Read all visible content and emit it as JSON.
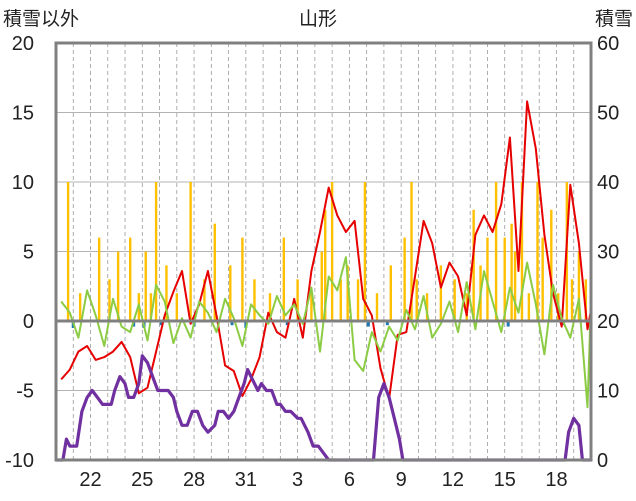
{
  "chart_data": {
    "type": "line",
    "title": "山形",
    "ylabel_left": "積雪以外",
    "ylabel_right": "積雪",
    "ylim_left": [
      -10,
      20
    ],
    "ylim_right": [
      0,
      60
    ],
    "yticks_left": [
      "20",
      "15",
      "10",
      "5",
      "0",
      "-5",
      "-10"
    ],
    "yticks_right": [
      "60",
      "50",
      "40",
      "30",
      "20",
      "10",
      "0"
    ],
    "xlim": [
      20,
      51
    ],
    "x_tick_positions": [
      22,
      25,
      28,
      31,
      34,
      37,
      40,
      43,
      46,
      49
    ],
    "xtick_labels": [
      "22",
      "25",
      "28",
      "31",
      "3",
      "6",
      "9",
      "12",
      "15",
      "18"
    ],
    "grid": true,
    "colors": {
      "temp_max": "#e60000",
      "temp_min": "#8ccc44",
      "precip": "#ffc000",
      "sunshine": "#1f77b4",
      "snow": "#7030a0",
      "frame": "#808080",
      "grid": "#9a9a9a"
    },
    "series": [
      {
        "name": "temp_max",
        "axis": "left",
        "color": "#e60000",
        "points": [
          [
            20.3,
            -4.2
          ],
          [
            20.8,
            -3.5
          ],
          [
            21.3,
            -2.2
          ],
          [
            21.8,
            -1.8
          ],
          [
            22.3,
            -2.8
          ],
          [
            22.8,
            -2.6
          ],
          [
            23.3,
            -2.2
          ],
          [
            23.8,
            -1.5
          ],
          [
            24.3,
            -2.6
          ],
          [
            24.8,
            -5.2
          ],
          [
            25.3,
            -4.8
          ],
          [
            25.8,
            -2.2
          ],
          [
            26.3,
            0.4
          ],
          [
            26.8,
            2.1
          ],
          [
            27.3,
            3.6
          ],
          [
            27.8,
            -0.2
          ],
          [
            28.3,
            1.2
          ],
          [
            28.8,
            3.6
          ],
          [
            29.3,
            0.4
          ],
          [
            29.8,
            -3.2
          ],
          [
            30.3,
            -3.6
          ],
          [
            30.8,
            -5.4
          ],
          [
            31.3,
            -4.2
          ],
          [
            31.8,
            -2.6
          ],
          [
            32.3,
            0.6
          ],
          [
            32.8,
            -0.8
          ],
          [
            33.3,
            -1.2
          ],
          [
            33.8,
            1.6
          ],
          [
            34.3,
            -1.2
          ],
          [
            34.8,
            3.6
          ],
          [
            35.3,
            6.4
          ],
          [
            35.8,
            9.6
          ],
          [
            36.3,
            7.6
          ],
          [
            36.8,
            6.4
          ],
          [
            37.3,
            7.2
          ],
          [
            37.8,
            1.6
          ],
          [
            38.3,
            0.4
          ],
          [
            38.8,
            -3.4
          ],
          [
            39.3,
            -5.6
          ],
          [
            39.8,
            -1.0
          ],
          [
            40.3,
            -0.8
          ],
          [
            40.8,
            3.2
          ],
          [
            41.3,
            7.2
          ],
          [
            41.8,
            5.6
          ],
          [
            42.3,
            2.4
          ],
          [
            42.8,
            4.2
          ],
          [
            43.3,
            3.2
          ],
          [
            43.8,
            0.4
          ],
          [
            44.3,
            6.2
          ],
          [
            44.8,
            7.6
          ],
          [
            45.3,
            6.4
          ],
          [
            45.8,
            8.4
          ],
          [
            46.3,
            13.2
          ],
          [
            46.8,
            3.6
          ],
          [
            47.3,
            15.8
          ],
          [
            47.8,
            12.4
          ],
          [
            48.3,
            6.2
          ],
          [
            48.8,
            2.0
          ],
          [
            49.3,
            -0.4
          ],
          [
            49.8,
            9.8
          ],
          [
            50.3,
            5.6
          ],
          [
            50.8,
            -0.6
          ],
          [
            51.0,
            0.8
          ]
        ]
      },
      {
        "name": "temp_min",
        "axis": "left",
        "color": "#8ccc44",
        "points": [
          [
            20.3,
            1.4
          ],
          [
            20.8,
            0.6
          ],
          [
            21.3,
            -1.2
          ],
          [
            21.8,
            2.2
          ],
          [
            22.3,
            0.4
          ],
          [
            22.8,
            -1.8
          ],
          [
            23.3,
            1.6
          ],
          [
            23.8,
            -0.4
          ],
          [
            24.3,
            -0.8
          ],
          [
            24.8,
            1.2
          ],
          [
            25.3,
            -1.4
          ],
          [
            25.8,
            2.6
          ],
          [
            26.3,
            1.4
          ],
          [
            26.8,
            -1.6
          ],
          [
            27.3,
            0.2
          ],
          [
            27.8,
            -1.2
          ],
          [
            28.3,
            1.4
          ],
          [
            28.8,
            0.6
          ],
          [
            29.3,
            -0.8
          ],
          [
            29.8,
            1.6
          ],
          [
            30.3,
            0.2
          ],
          [
            30.8,
            -1.8
          ],
          [
            31.3,
            1.2
          ],
          [
            31.8,
            0.4
          ],
          [
            32.3,
            -0.2
          ],
          [
            32.8,
            1.8
          ],
          [
            33.3,
            0.4
          ],
          [
            33.8,
            1.2
          ],
          [
            34.3,
            -0.2
          ],
          [
            34.8,
            2.4
          ],
          [
            35.3,
            -2.2
          ],
          [
            35.8,
            3.2
          ],
          [
            36.3,
            2.2
          ],
          [
            36.8,
            4.6
          ],
          [
            37.3,
            -2.8
          ],
          [
            37.8,
            -3.6
          ],
          [
            38.3,
            -0.8
          ],
          [
            38.8,
            -2.2
          ],
          [
            39.3,
            -0.4
          ],
          [
            39.8,
            -1.4
          ],
          [
            40.3,
            0.8
          ],
          [
            40.8,
            -0.6
          ],
          [
            41.3,
            1.8
          ],
          [
            41.8,
            -1.2
          ],
          [
            42.3,
            -0.2
          ],
          [
            42.8,
            1.4
          ],
          [
            43.3,
            -0.8
          ],
          [
            43.8,
            2.8
          ],
          [
            44.3,
            -0.6
          ],
          [
            44.8,
            3.6
          ],
          [
            45.3,
            1.4
          ],
          [
            45.8,
            -0.8
          ],
          [
            46.3,
            2.4
          ],
          [
            46.8,
            0.6
          ],
          [
            47.3,
            4.2
          ],
          [
            47.8,
            1.2
          ],
          [
            48.3,
            -2.4
          ],
          [
            48.8,
            2.6
          ],
          [
            49.3,
            0.2
          ],
          [
            49.8,
            -1.2
          ],
          [
            50.3,
            1.6
          ],
          [
            50.8,
            -6.2
          ],
          [
            51.0,
            1.6
          ]
        ]
      },
      {
        "name": "snow_depth",
        "axis": "right",
        "color": "#7030a0",
        "points": [
          [
            20.0,
            0
          ],
          [
            20.4,
            0
          ],
          [
            20.6,
            3
          ],
          [
            20.8,
            2
          ],
          [
            21.2,
            2
          ],
          [
            21.5,
            7
          ],
          [
            21.8,
            9
          ],
          [
            22.1,
            10
          ],
          [
            22.4,
            9
          ],
          [
            22.7,
            8
          ],
          [
            23.2,
            8
          ],
          [
            23.4,
            10
          ],
          [
            23.7,
            12
          ],
          [
            24.0,
            11
          ],
          [
            24.2,
            9
          ],
          [
            24.5,
            9
          ],
          [
            24.8,
            11
          ],
          [
            25.0,
            15
          ],
          [
            25.3,
            14
          ],
          [
            25.6,
            12
          ],
          [
            25.9,
            10
          ],
          [
            26.2,
            10
          ],
          [
            26.5,
            10
          ],
          [
            26.8,
            9
          ],
          [
            27.0,
            7
          ],
          [
            27.3,
            5
          ],
          [
            27.6,
            5
          ],
          [
            27.9,
            7
          ],
          [
            28.2,
            7
          ],
          [
            28.5,
            5
          ],
          [
            28.8,
            4
          ],
          [
            29.2,
            5
          ],
          [
            29.4,
            7
          ],
          [
            29.7,
            7
          ],
          [
            30.0,
            6
          ],
          [
            30.3,
            7
          ],
          [
            30.6,
            9
          ],
          [
            30.9,
            11
          ],
          [
            31.1,
            13
          ],
          [
            31.3,
            12
          ],
          [
            31.5,
            11
          ],
          [
            31.7,
            10
          ],
          [
            31.9,
            11
          ],
          [
            32.2,
            10
          ],
          [
            32.5,
            10
          ],
          [
            32.8,
            8
          ],
          [
            33.0,
            8
          ],
          [
            33.3,
            7
          ],
          [
            33.6,
            7
          ],
          [
            34.0,
            6
          ],
          [
            34.2,
            6
          ],
          [
            34.6,
            4
          ],
          [
            34.9,
            2
          ],
          [
            35.2,
            2
          ],
          [
            35.5,
            1
          ],
          [
            35.8,
            0
          ],
          [
            38.4,
            0
          ],
          [
            38.7,
            9
          ],
          [
            39.0,
            11
          ],
          [
            39.3,
            9
          ],
          [
            39.6,
            6
          ],
          [
            39.9,
            3
          ],
          [
            40.1,
            0
          ],
          [
            49.5,
            0
          ],
          [
            49.7,
            4
          ],
          [
            50.0,
            6
          ],
          [
            50.3,
            5
          ],
          [
            50.5,
            0
          ],
          [
            51.0,
            0
          ]
        ]
      }
    ],
    "bars": [
      {
        "name": "precip",
        "axis": "left",
        "color": "#ffc000",
        "x": [
          20.7,
          21.4,
          22.5,
          23.1,
          23.6,
          24.3,
          24.8,
          25.2,
          25.5,
          25.8,
          26.4,
          27.0,
          27.8,
          28.6,
          29.2,
          30.1,
          30.8,
          31.5,
          32.4,
          33.2,
          34.0,
          34.8,
          35.4,
          35.6,
          36.0,
          36.5,
          36.9,
          37.5,
          37.9,
          38.6,
          39.4,
          40.2,
          40.6,
          40.9,
          41.5,
          42.3,
          43.1,
          43.8,
          44.2,
          44.6,
          45.0,
          45.5,
          46.0,
          46.4,
          46.6,
          47.0,
          47.4,
          47.9,
          48.2,
          48.7,
          49.1,
          49.6,
          49.9,
          50.3,
          50.7
        ],
        "values": [
          10,
          2,
          6,
          3,
          5,
          6,
          2,
          5,
          2,
          10,
          4,
          2,
          10,
          3,
          7,
          4,
          6,
          3,
          2,
          6,
          3,
          2,
          5,
          8,
          10,
          3,
          4,
          3,
          10,
          2,
          4,
          6,
          10,
          3,
          2,
          4,
          3,
          2,
          8,
          4,
          6,
          10,
          6,
          7,
          5,
          10,
          2,
          10,
          6,
          8,
          2,
          10,
          3,
          5,
          3
        ]
      },
      {
        "name": "sunshine",
        "axis": "left",
        "color": "#1f77b4",
        "x": [
          21.0,
          24.5,
          25.1,
          26.1,
          28.0,
          30.2,
          31.0,
          33.4,
          38.1,
          39.2,
          46.2,
          49.4
        ],
        "values": [
          -0.5,
          -0.4,
          -0.5,
          -0.3,
          -0.4,
          -0.3,
          -0.5,
          -0.3,
          -0.4,
          -0.3,
          -0.4,
          -0.3
        ]
      }
    ]
  }
}
